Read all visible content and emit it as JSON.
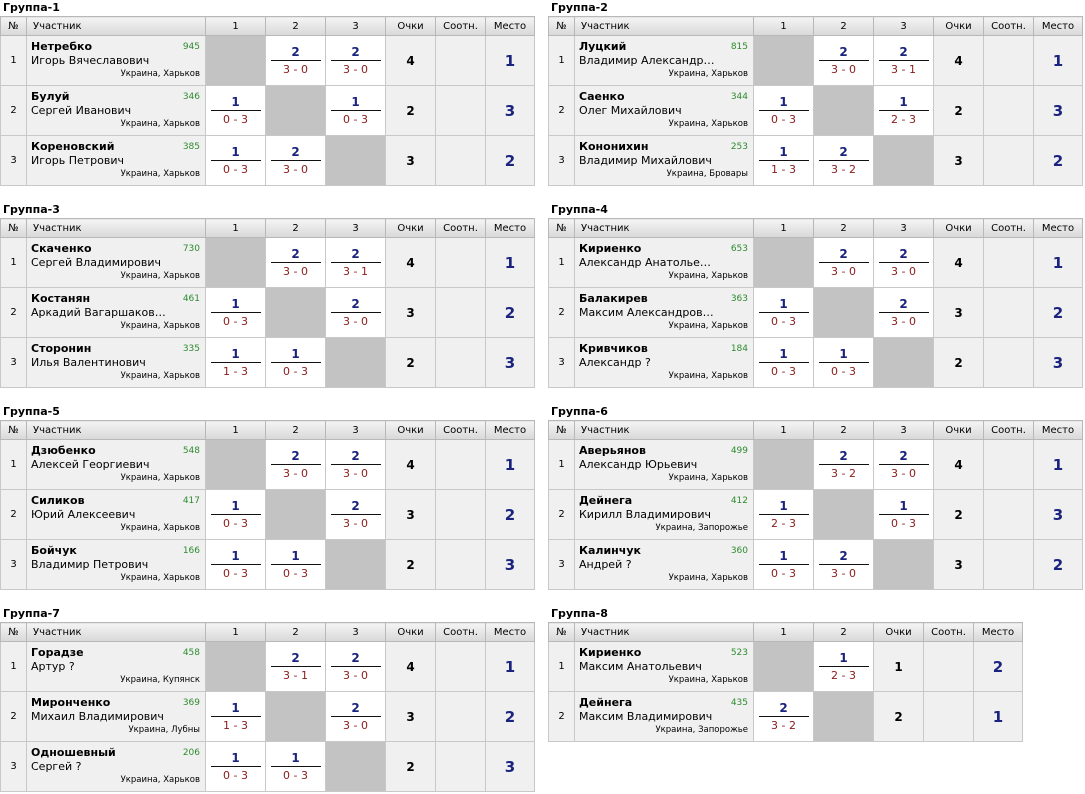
{
  "headers": {
    "num": "№",
    "player": "Участник",
    "points": "Очки",
    "ratio": "Соотн.",
    "place": "Место"
  },
  "groups": [
    {
      "title": "Группа-1",
      "cols": [
        "1",
        "2",
        "3"
      ],
      "players": [
        {
          "num": "1",
          "surname": "Нетребко",
          "name": "Игорь Вячеславович",
          "rating": "945",
          "city": "Украина, Харьков",
          "games": [
            null,
            {
              "p": "2",
              "s": "3 - 0"
            },
            {
              "p": "2",
              "s": "3 - 0"
            }
          ],
          "points": "4",
          "ratio": "",
          "place": "1"
        },
        {
          "num": "2",
          "surname": "Булуй",
          "name": "Сергей Иванович",
          "rating": "346",
          "city": "Украина, Харьков",
          "games": [
            {
              "p": "1",
              "s": "0 - 3"
            },
            null,
            {
              "p": "1",
              "s": "0 - 3"
            }
          ],
          "points": "2",
          "ratio": "",
          "place": "3"
        },
        {
          "num": "3",
          "surname": "Кореновский",
          "name": "Игорь Петрович",
          "rating": "385",
          "city": "Украина, Харьков",
          "games": [
            {
              "p": "1",
              "s": "0 - 3"
            },
            {
              "p": "2",
              "s": "3 - 0"
            },
            null
          ],
          "points": "3",
          "ratio": "",
          "place": "2"
        }
      ]
    },
    {
      "title": "Группа-2",
      "cols": [
        "1",
        "2",
        "3"
      ],
      "players": [
        {
          "num": "1",
          "surname": "Луцкий",
          "name": "Владимир Александро...",
          "rating": "815",
          "city": "Украина, Харьков",
          "games": [
            null,
            {
              "p": "2",
              "s": "3 - 0"
            },
            {
              "p": "2",
              "s": "3 - 1"
            }
          ],
          "points": "4",
          "ratio": "",
          "place": "1"
        },
        {
          "num": "2",
          "surname": "Саенко",
          "name": "Олег Михайлович",
          "rating": "344",
          "city": "Украина, Харьков",
          "games": [
            {
              "p": "1",
              "s": "0 - 3"
            },
            null,
            {
              "p": "1",
              "s": "2 - 3"
            }
          ],
          "points": "2",
          "ratio": "",
          "place": "3"
        },
        {
          "num": "3",
          "surname": "Кононихин",
          "name": "Владимир Михайлович",
          "rating": "253",
          "city": "Украина, Бровары",
          "games": [
            {
              "p": "1",
              "s": "1 - 3"
            },
            {
              "p": "2",
              "s": "3 - 2"
            },
            null
          ],
          "points": "3",
          "ratio": "",
          "place": "2"
        }
      ]
    },
    {
      "title": "Группа-3",
      "cols": [
        "1",
        "2",
        "3"
      ],
      "players": [
        {
          "num": "1",
          "surname": "Скаченко",
          "name": "Сергей Владимирович",
          "rating": "730",
          "city": "Украина, Харьков",
          "games": [
            null,
            {
              "p": "2",
              "s": "3 - 0"
            },
            {
              "p": "2",
              "s": "3 - 1"
            }
          ],
          "points": "4",
          "ratio": "",
          "place": "1"
        },
        {
          "num": "2",
          "surname": "Костанян",
          "name": "Аркадий Вагаршакович",
          "rating": "461",
          "city": "Украина, Харьков",
          "games": [
            {
              "p": "1",
              "s": "0 - 3"
            },
            null,
            {
              "p": "2",
              "s": "3 - 0"
            }
          ],
          "points": "3",
          "ratio": "",
          "place": "2"
        },
        {
          "num": "3",
          "surname": "Сторонин",
          "name": "Илья Валентинович",
          "rating": "335",
          "city": "Украина, Харьков",
          "games": [
            {
              "p": "1",
              "s": "1 - 3"
            },
            {
              "p": "1",
              "s": "0 - 3"
            },
            null
          ],
          "points": "2",
          "ratio": "",
          "place": "3"
        }
      ]
    },
    {
      "title": "Группа-4",
      "cols": [
        "1",
        "2",
        "3"
      ],
      "players": [
        {
          "num": "1",
          "surname": "Кириенко",
          "name": "Александр Анатольевич",
          "rating": "653",
          "city": "Украина, Харьков",
          "games": [
            null,
            {
              "p": "2",
              "s": "3 - 0"
            },
            {
              "p": "2",
              "s": "3 - 0"
            }
          ],
          "points": "4",
          "ratio": "",
          "place": "1"
        },
        {
          "num": "2",
          "surname": "Балакирев",
          "name": "Максим Александрович",
          "rating": "363",
          "city": "Украина, Харьков",
          "games": [
            {
              "p": "1",
              "s": "0 - 3"
            },
            null,
            {
              "p": "2",
              "s": "3 - 0"
            }
          ],
          "points": "3",
          "ratio": "",
          "place": "2"
        },
        {
          "num": "3",
          "surname": "Кривчиков",
          "name": "Александр ?",
          "rating": "184",
          "city": "Украина, Харьков",
          "games": [
            {
              "p": "1",
              "s": "0 - 3"
            },
            {
              "p": "1",
              "s": "0 - 3"
            },
            null
          ],
          "points": "2",
          "ratio": "",
          "place": "3"
        }
      ]
    },
    {
      "title": "Группа-5",
      "cols": [
        "1",
        "2",
        "3"
      ],
      "players": [
        {
          "num": "1",
          "surname": "Дзюбенко",
          "name": "Алексей Георгиевич",
          "rating": "548",
          "city": "Украина, Харьков",
          "games": [
            null,
            {
              "p": "2",
              "s": "3 - 0"
            },
            {
              "p": "2",
              "s": "3 - 0"
            }
          ],
          "points": "4",
          "ratio": "",
          "place": "1"
        },
        {
          "num": "2",
          "surname": "Силиков",
          "name": "Юрий Алексеевич",
          "rating": "417",
          "city": "Украина, Харьков",
          "games": [
            {
              "p": "1",
              "s": "0 - 3"
            },
            null,
            {
              "p": "2",
              "s": "3 - 0"
            }
          ],
          "points": "3",
          "ratio": "",
          "place": "2"
        },
        {
          "num": "3",
          "surname": "Бойчук",
          "name": "Владимир Петрович",
          "rating": "166",
          "city": "Украина, Харьков",
          "games": [
            {
              "p": "1",
              "s": "0 - 3"
            },
            {
              "p": "1",
              "s": "0 - 3"
            },
            null
          ],
          "points": "2",
          "ratio": "",
          "place": "3"
        }
      ]
    },
    {
      "title": "Группа-6",
      "cols": [
        "1",
        "2",
        "3"
      ],
      "players": [
        {
          "num": "1",
          "surname": "Аверьянов",
          "name": "Александр Юрьевич",
          "rating": "499",
          "city": "Украина, Харьков",
          "games": [
            null,
            {
              "p": "2",
              "s": "3 - 2"
            },
            {
              "p": "2",
              "s": "3 - 0"
            }
          ],
          "points": "4",
          "ratio": "",
          "place": "1"
        },
        {
          "num": "2",
          "surname": "Дейнега",
          "name": "Кирилл Владимирович",
          "rating": "412",
          "city": "Украина, Запорожье",
          "games": [
            {
              "p": "1",
              "s": "2 - 3"
            },
            null,
            {
              "p": "1",
              "s": "0 - 3"
            }
          ],
          "points": "2",
          "ratio": "",
          "place": "3"
        },
        {
          "num": "3",
          "surname": "Калинчук",
          "name": "Андрей ?",
          "rating": "360",
          "city": "Украина, Харьков",
          "games": [
            {
              "p": "1",
              "s": "0 - 3"
            },
            {
              "p": "2",
              "s": "3 - 0"
            },
            null
          ],
          "points": "3",
          "ratio": "",
          "place": "2"
        }
      ]
    },
    {
      "title": "Группа-7",
      "cols": [
        "1",
        "2",
        "3"
      ],
      "players": [
        {
          "num": "1",
          "surname": "Горадзе",
          "name": "Артур ?",
          "rating": "458",
          "city": "Украина, Купянск",
          "games": [
            null,
            {
              "p": "2",
              "s": "3 - 1"
            },
            {
              "p": "2",
              "s": "3 - 0"
            }
          ],
          "points": "4",
          "ratio": "",
          "place": "1"
        },
        {
          "num": "2",
          "surname": "Миронченко",
          "name": "Михаил Владимирович",
          "rating": "369",
          "city": "Украина, Лубны",
          "games": [
            {
              "p": "1",
              "s": "1 - 3"
            },
            null,
            {
              "p": "2",
              "s": "3 - 0"
            }
          ],
          "points": "3",
          "ratio": "",
          "place": "2"
        },
        {
          "num": "3",
          "surname": "Одношевный",
          "name": "Сергей ?",
          "rating": "206",
          "city": "Украина, Харьков",
          "games": [
            {
              "p": "1",
              "s": "0 - 3"
            },
            {
              "p": "1",
              "s": "0 - 3"
            },
            null
          ],
          "points": "2",
          "ratio": "",
          "place": "3"
        }
      ]
    },
    {
      "title": "Группа-8",
      "cols": [
        "1",
        "2"
      ],
      "players": [
        {
          "num": "1",
          "surname": "Кириенко",
          "name": "Максим Анатольевич",
          "rating": "523",
          "city": "Украина, Харьков",
          "games": [
            null,
            {
              "p": "1",
              "s": "2 - 3"
            }
          ],
          "points": "1",
          "ratio": "",
          "place": "2"
        },
        {
          "num": "2",
          "surname": "Дейнега",
          "name": "Максим Владимирович",
          "rating": "435",
          "city": "Украина, Запорожье",
          "games": [
            {
              "p": "2",
              "s": "3 - 2"
            },
            null
          ],
          "points": "2",
          "ratio": "",
          "place": "1"
        }
      ]
    }
  ]
}
